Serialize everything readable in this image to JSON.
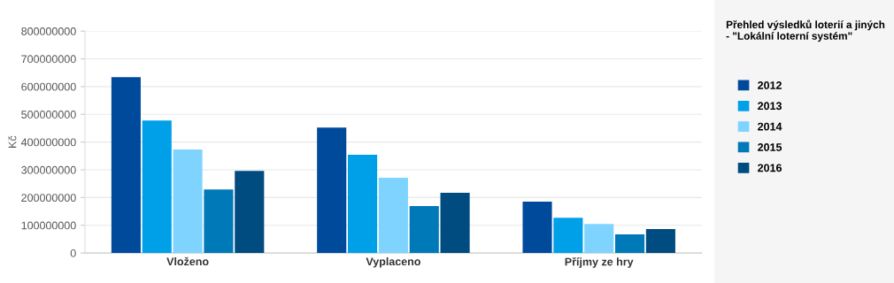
{
  "chart_data": {
    "type": "bar",
    "title": "Přehled výsledků loterií a jiných\n- \"Lokální loterní systém\"",
    "ylabel": "Kč",
    "categories": [
      "Vloženo",
      "Vyplaceno",
      "Příjmy ze hry"
    ],
    "series": [
      {
        "name": "2012",
        "color": "#004a9c",
        "values": [
          634000000,
          452000000,
          185000000
        ]
      },
      {
        "name": "2013",
        "color": "#00a0e9",
        "values": [
          478000000,
          354000000,
          127000000
        ]
      },
      {
        "name": "2014",
        "color": "#7fd4ff",
        "values": [
          373000000,
          271000000,
          105000000
        ]
      },
      {
        "name": "2015",
        "color": "#0079b9",
        "values": [
          229000000,
          169000000,
          67000000
        ]
      },
      {
        "name": "2016",
        "color": "#004b80",
        "values": [
          296000000,
          217000000,
          86000000
        ]
      }
    ],
    "ylim": [
      0,
      800000000
    ],
    "yticks": [
      0,
      100000000,
      200000000,
      300000000,
      400000000,
      500000000,
      600000000,
      700000000,
      800000000
    ],
    "grid": "y",
    "legend": "right"
  }
}
